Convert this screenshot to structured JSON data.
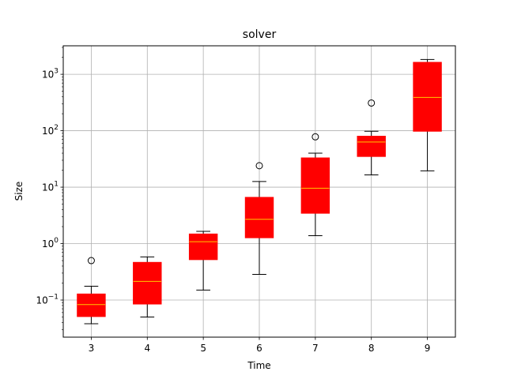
{
  "chart_data": {
    "type": "box",
    "title": "solver",
    "xlabel": "Time",
    "ylabel": "Size",
    "yscale": "log",
    "ylim": [
      0.022,
      3200
    ],
    "grid": true,
    "categories": [
      "3",
      "4",
      "5",
      "6",
      "7",
      "8",
      "9"
    ],
    "boxes": [
      {
        "category": "3",
        "whisker_low": 0.038,
        "q1": 0.051,
        "median": 0.083,
        "q3": 0.128,
        "whisker_high": 0.176,
        "outliers": [
          0.5
        ]
      },
      {
        "category": "4",
        "whisker_low": 0.05,
        "q1": 0.085,
        "median": 0.214,
        "q3": 0.465,
        "whisker_high": 0.58,
        "outliers": []
      },
      {
        "category": "5",
        "whisker_low": 0.15,
        "q1": 0.52,
        "median": 1.08,
        "q3": 1.48,
        "whisker_high": 1.65,
        "outliers": []
      },
      {
        "category": "6",
        "whisker_low": 0.285,
        "q1": 1.27,
        "median": 2.7,
        "q3": 6.6,
        "whisker_high": 12.6,
        "outliers": [
          24.0
        ]
      },
      {
        "category": "7",
        "whisker_low": 1.38,
        "q1": 3.45,
        "median": 9.6,
        "q3": 33.0,
        "whisker_high": 40.0,
        "outliers": [
          78.0
        ]
      },
      {
        "category": "8",
        "whisker_low": 16.5,
        "q1": 35.0,
        "median": 63.0,
        "q3": 80.0,
        "whisker_high": 98.0,
        "outliers": [
          310.0
        ]
      },
      {
        "category": "9",
        "whisker_low": 19.5,
        "q1": 98.0,
        "median": 390.0,
        "q3": 1630.0,
        "whisker_high": 1830.0,
        "outliers": []
      }
    ],
    "box_color": "#ff0000",
    "median_color": "#ffc800",
    "whisker_color": "#000000",
    "grid_color": "#b0b0b0",
    "y_ticks": [
      {
        "value": 0.1,
        "base": "10",
        "exp": "−1"
      },
      {
        "value": 1,
        "base": "10",
        "exp": "0"
      },
      {
        "value": 10,
        "base": "10",
        "exp": "1"
      },
      {
        "value": 100,
        "base": "10",
        "exp": "2"
      },
      {
        "value": 1000,
        "base": "10",
        "exp": "3"
      }
    ]
  }
}
